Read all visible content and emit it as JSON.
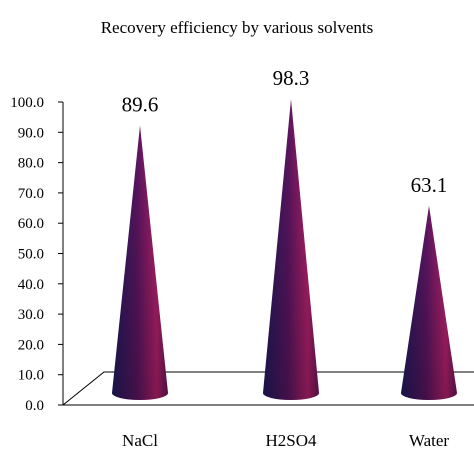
{
  "chart_data": {
    "type": "bar",
    "title": "Recovery efficiency by various solvents",
    "categories": [
      "NaCl",
      "H2SO4",
      "Water"
    ],
    "values": [
      89.6,
      98.3,
      63.1
    ],
    "data_labels": [
      "89.6",
      "98.3",
      "63.1"
    ],
    "ylim": [
      0,
      100
    ],
    "yticks": [
      "0.0",
      "10.0",
      "20.0",
      "30.0",
      "40.0",
      "50.0",
      "60.0",
      "70.0",
      "80.0",
      "90.0",
      "100.0"
    ],
    "xlabel": "",
    "ylabel": "",
    "grid": false,
    "bar_shape": "cone",
    "colors": {
      "cone_dark": "#1f1a5c",
      "cone_mid": "#5a1560",
      "cone_light": "#b0206a",
      "axis": "#000000"
    }
  }
}
